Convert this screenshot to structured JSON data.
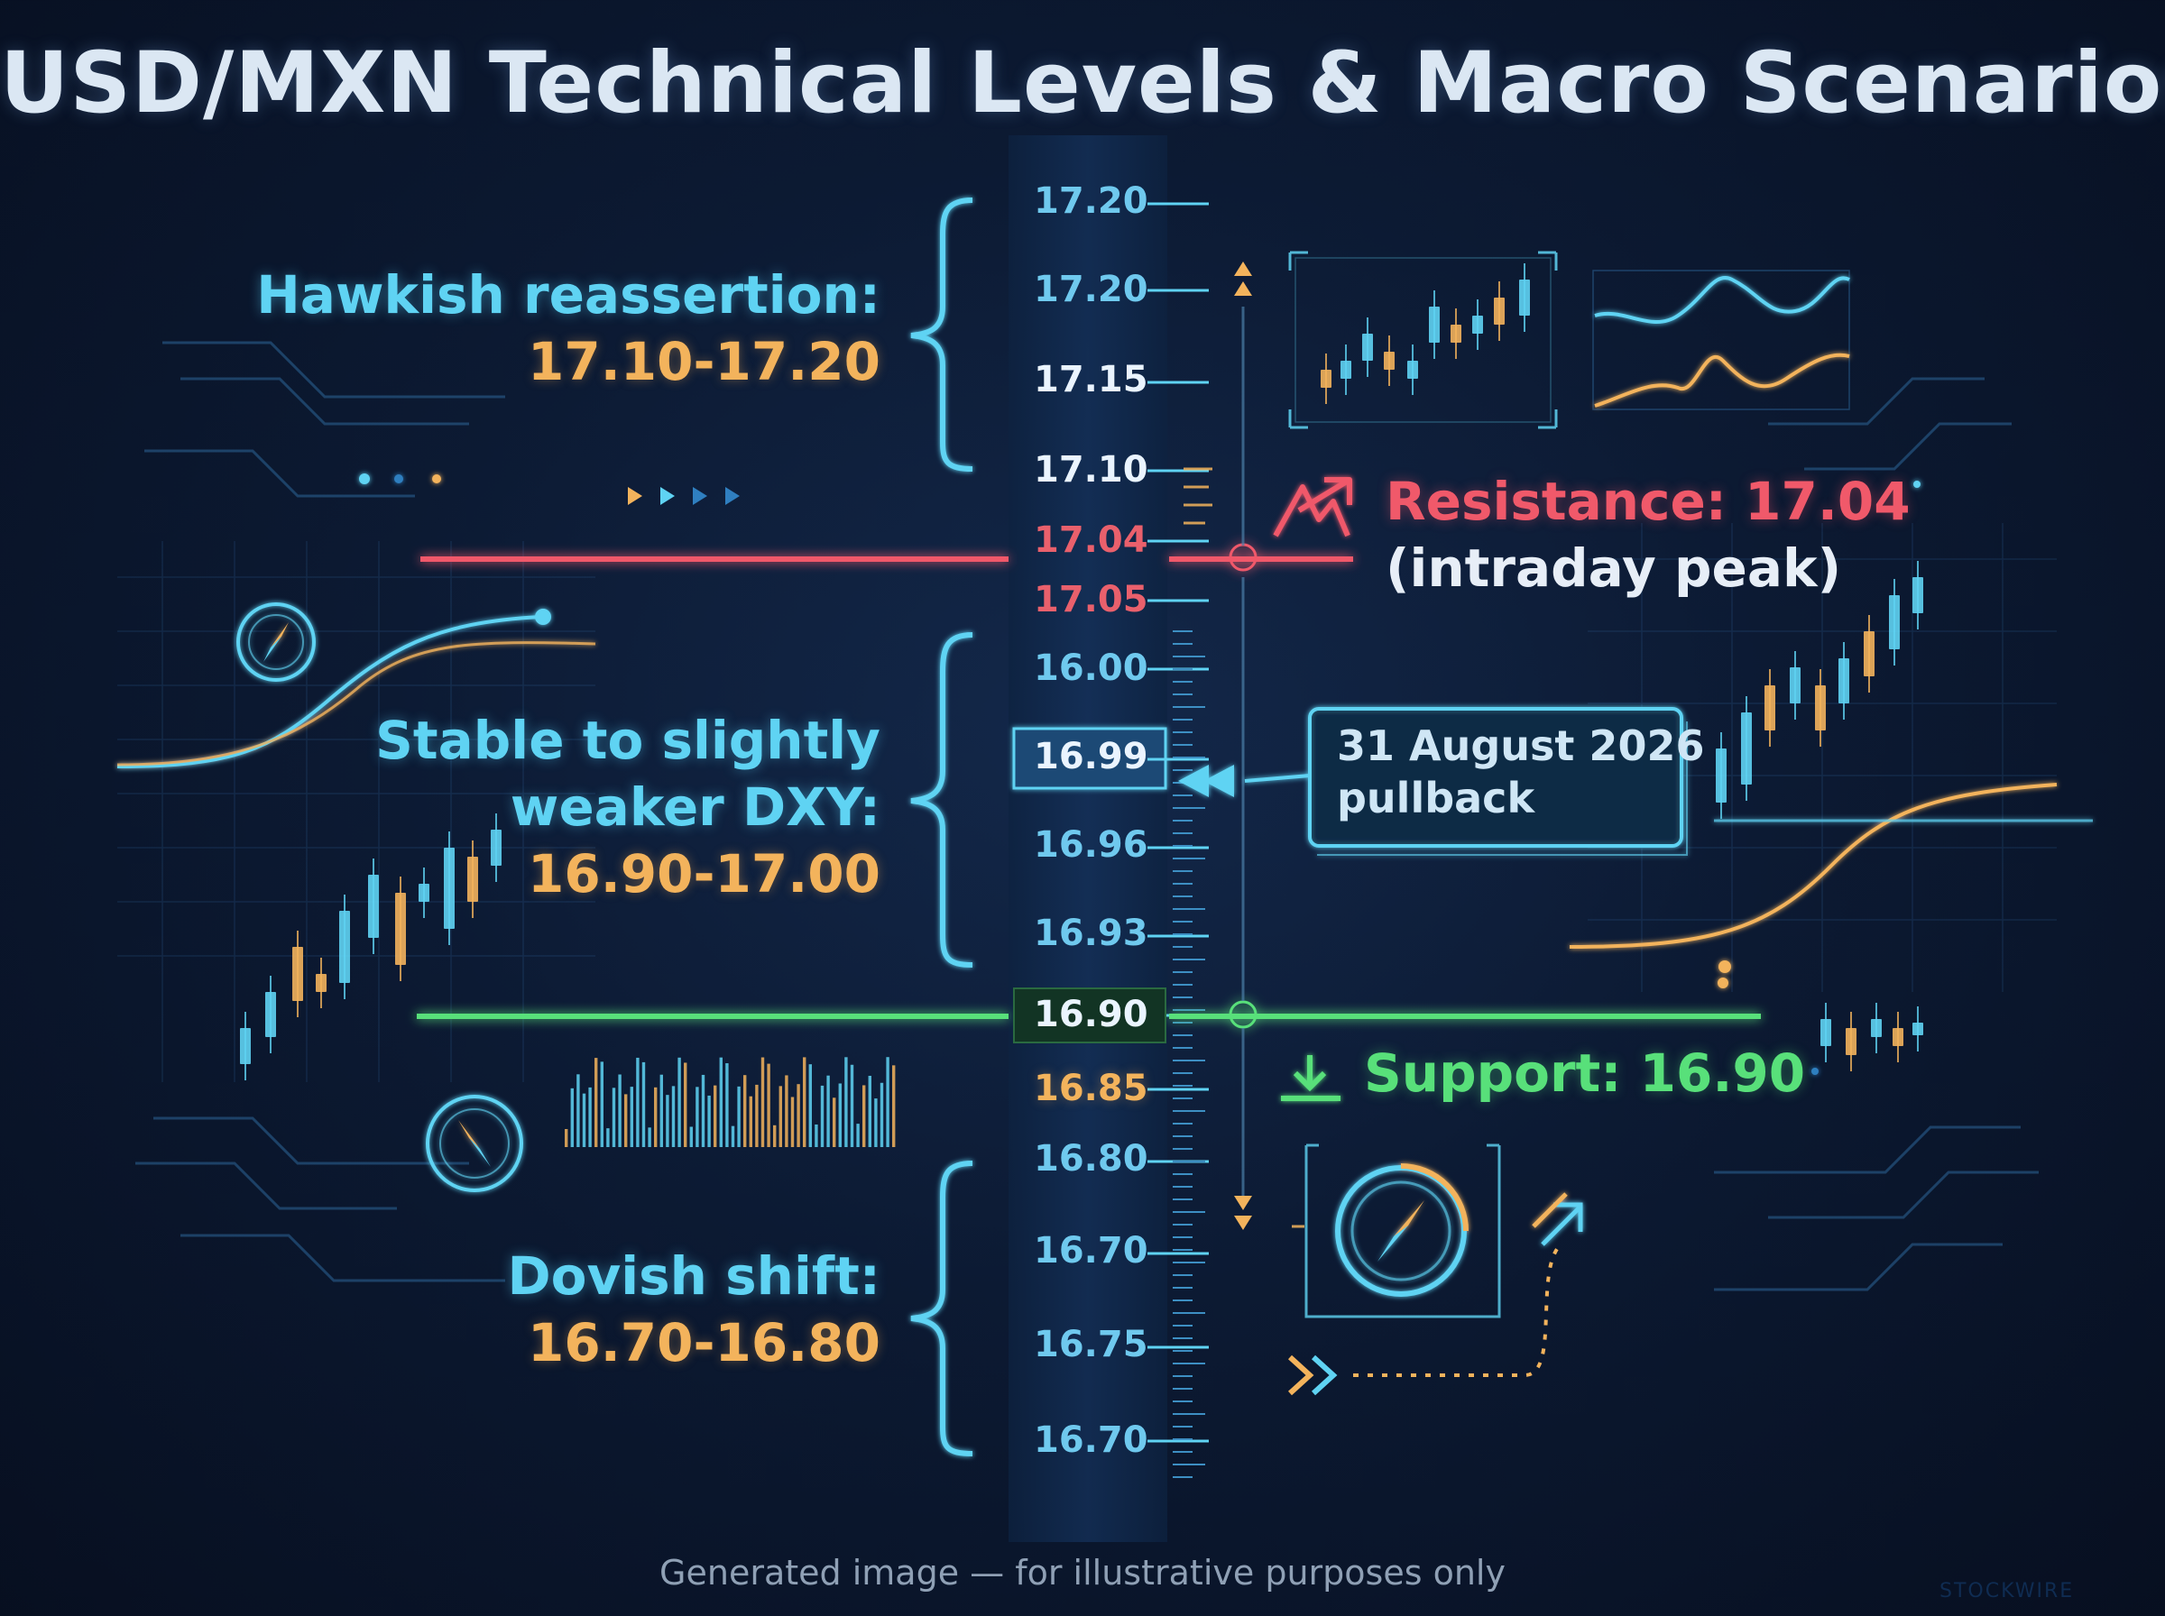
{
  "title": "USD/MXN Technical Levels & Macro Scenarios",
  "scale_ticks": [
    "17.20",
    "17.20",
    "17.15",
    "17.10",
    "17.04",
    "17.05",
    "16.00",
    "16.99",
    "16.96",
    "16.93",
    "16.90",
    "16.85",
    "16.80",
    "16.70",
    "16.75",
    "16.70"
  ],
  "scenarios": [
    {
      "name": "Hawkish reassertion:",
      "range": "17.10-17.20"
    },
    {
      "name_line1": "Stable to slightly",
      "name_line2": "weaker DXY:",
      "range": "16.90-17.00"
    },
    {
      "name": "Dovish shift:",
      "range": "16.70-16.80"
    }
  ],
  "resistance": {
    "label": "Resistance: 17.04",
    "note": "(intraday peak)"
  },
  "support": {
    "label": "Support: 16.90"
  },
  "callout": {
    "line1": "31 August 2026",
    "line2": "pullback"
  },
  "footer": "Generated image — for illustrative purposes only",
  "watermark": "STOCKWIRE",
  "colors": {
    "resistance": "#f0596a",
    "support": "#58e07a",
    "accent": "#5fd3f3",
    "range": "#f3b35c"
  }
}
